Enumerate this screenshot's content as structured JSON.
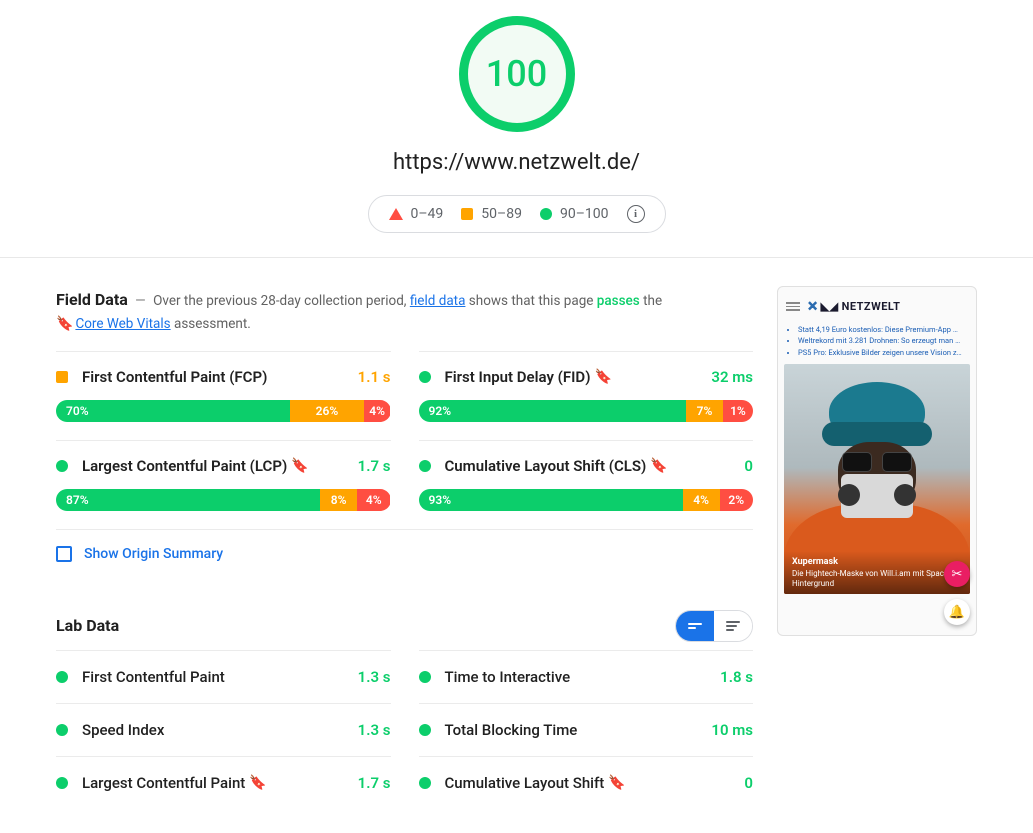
{
  "colors": {
    "pass": "#0cce6b",
    "average": "#ffa400",
    "fail": "#ff4e42",
    "link": "#1a73e8",
    "bookmark": "#3367d6",
    "text": "#212121",
    "muted": "#616161"
  },
  "header": {
    "score": "100",
    "score_color": "#0cce6b",
    "url": "https://www.netzwelt.de/",
    "legend": {
      "fail": "0–49",
      "average": "50–89",
      "pass": "90–100"
    }
  },
  "field": {
    "title": "Field Data",
    "intro_prefix": "Over the previous 28-day collection period,",
    "intro_link": "field data",
    "intro_mid": "shows that this page",
    "intro_verdict": "passes",
    "intro_suffix": "the",
    "cwv_link": "Core Web Vitals",
    "cwv_suffix": "assessment.",
    "metrics": [
      {
        "name": "First Contentful Paint (FCP)",
        "value": "1.1 s",
        "status": "average",
        "bookmark": false,
        "dist": {
          "good": "70%",
          "avg": "26%",
          "poor": "4%",
          "good_w": 70,
          "avg_w": 22,
          "poor_w": 8
        }
      },
      {
        "name": "First Input Delay (FID)",
        "value": "32 ms",
        "status": "pass",
        "bookmark": true,
        "dist": {
          "good": "92%",
          "avg": "7%",
          "poor": "1%",
          "good_w": 80,
          "avg_w": 11,
          "poor_w": 9
        }
      },
      {
        "name": "Largest Contentful Paint (LCP)",
        "value": "1.7 s",
        "status": "pass",
        "bookmark": true,
        "dist": {
          "good": "87%",
          "avg": "8%",
          "poor": "4%",
          "good_w": 79,
          "avg_w": 11,
          "poor_w": 10
        }
      },
      {
        "name": "Cumulative Layout Shift (CLS)",
        "value": "0",
        "status": "pass",
        "bookmark": true,
        "dist": {
          "good": "93%",
          "avg": "4%",
          "poor": "2%",
          "good_w": 79,
          "avg_w": 11,
          "poor_w": 10
        }
      }
    ],
    "origin_toggle": "Show Origin Summary"
  },
  "lab": {
    "title": "Lab Data",
    "metrics": [
      {
        "name": "First Contentful Paint",
        "value": "1.3 s",
        "status": "pass",
        "bookmark": false
      },
      {
        "name": "Time to Interactive",
        "value": "1.8 s",
        "status": "pass",
        "bookmark": false
      },
      {
        "name": "Speed Index",
        "value": "1.3 s",
        "status": "pass",
        "bookmark": false
      },
      {
        "name": "Total Blocking Time",
        "value": "10 ms",
        "status": "pass",
        "bookmark": false
      },
      {
        "name": "Largest Contentful Paint",
        "value": "1.7 s",
        "status": "pass",
        "bookmark": true
      },
      {
        "name": "Cumulative Layout Shift",
        "value": "0",
        "status": "pass",
        "bookmark": true
      }
    ]
  },
  "thumb": {
    "brand": "NETZWELT",
    "links": [
      "Statt 4,19 Euro kostenlos: Diese Premium-App …",
      "Weltrekord mit 3.281 Drohnen: So erzeugt man …",
      "PS5 Pro: Exklusive Bilder zeigen unsere Vision z…"
    ],
    "hero_title": "Xupermask",
    "hero_sub": "Die Hightech-Maske von Will.i.am mit SpaceX-Hintergrund"
  }
}
